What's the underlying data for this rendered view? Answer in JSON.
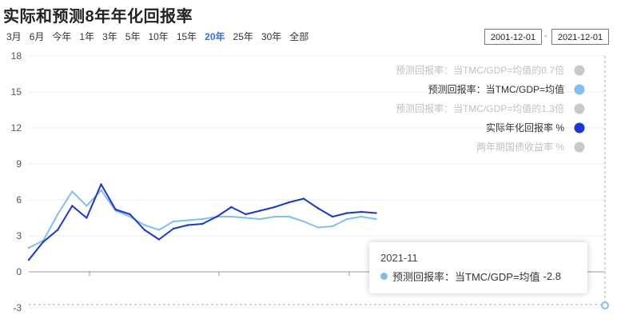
{
  "title": "实际和预测8年年化回报率",
  "ranges": [
    {
      "label": "3月",
      "active": false
    },
    {
      "label": "6月",
      "active": false
    },
    {
      "label": "今年",
      "active": false
    },
    {
      "label": "1年",
      "active": false
    },
    {
      "label": "3年",
      "active": false
    },
    {
      "label": "5年",
      "active": false
    },
    {
      "label": "10年",
      "active": false
    },
    {
      "label": "15年",
      "active": false
    },
    {
      "label": "20年",
      "active": true
    },
    {
      "label": "25年",
      "active": false
    },
    {
      "label": "30年",
      "active": false
    },
    {
      "label": "全部",
      "active": false
    }
  ],
  "date_from": "2001-12-01",
  "date_sep": "-",
  "date_to": "2021-12-01",
  "tooltip": {
    "title": "2021-11",
    "label": "预测回报率：当TMC/GDP=均值",
    "value": "-2.8"
  },
  "colors": {
    "actual": "#1a35d8",
    "forecast": "#80bff0",
    "disabled": "#c8c8c8",
    "active_range": "#3a6fd8"
  },
  "chart_data": {
    "type": "line",
    "ylim": [
      -3,
      18
    ],
    "yticks": [
      "-3",
      "0",
      "3",
      "6",
      "9",
      "12",
      "15",
      "18"
    ],
    "grid": true,
    "legend_position": "top-right",
    "x_start": "2001-12",
    "x_end": "2021-11",
    "legend": [
      {
        "label": "预测回报率：当TMC/GDP=均值的0.7倍",
        "color": "#c8c8c8",
        "enabled": false
      },
      {
        "label": "预测回报率：当TMC/GDP=均值",
        "color": "#80bff0",
        "enabled": true
      },
      {
        "label": "预测回报率：当TMC/GDP=均值的1.3倍",
        "color": "#c8c8c8",
        "enabled": false
      },
      {
        "label": "实际年化回报率 %",
        "color": "#1a35d8",
        "enabled": true
      },
      {
        "label": "两年期国债收益率 %",
        "color": "#c8c8c8",
        "enabled": false
      }
    ],
    "series": [
      {
        "name": "实际年化回报率 %",
        "x": [
          "2001-12",
          "2002-06",
          "2002-12",
          "2003-06",
          "2003-12",
          "2004-06",
          "2004-12",
          "2005-06",
          "2005-12",
          "2006-06",
          "2006-12",
          "2007-06",
          "2007-12",
          "2008-06",
          "2008-12",
          "2009-06",
          "2009-12",
          "2010-06",
          "2010-12",
          "2011-06",
          "2011-12",
          "2012-06",
          "2012-12",
          "2013-06",
          "2013-12"
        ],
        "values": [
          1.0,
          2.5,
          3.5,
          5.5,
          4.5,
          7.3,
          5.2,
          4.8,
          3.5,
          2.7,
          3.6,
          3.9,
          4.0,
          4.6,
          5.4,
          4.8,
          5.1,
          5.4,
          5.8,
          6.1,
          5.3,
          4.6,
          4.9,
          5.0,
          4.9
        ]
      },
      {
        "name": "预测回报率：当TMC/GDP=均值",
        "x": [
          "2001-12",
          "2002-06",
          "2002-12",
          "2003-06",
          "2003-12",
          "2004-06",
          "2004-12",
          "2005-06",
          "2005-12",
          "2006-06",
          "2006-12",
          "2007-06",
          "2007-12",
          "2008-06",
          "2008-12",
          "2009-06",
          "2009-12",
          "2010-06",
          "2010-12",
          "2011-06",
          "2011-12",
          "2012-06",
          "2012-12",
          "2013-06",
          "2013-12"
        ],
        "values": [
          2.0,
          2.6,
          4.8,
          6.7,
          5.5,
          6.8,
          5.1,
          4.6,
          3.9,
          3.5,
          4.2,
          4.3,
          4.4,
          4.6,
          4.6,
          4.5,
          4.4,
          4.6,
          4.6,
          4.2,
          3.7,
          3.8,
          4.4,
          4.6,
          4.4
        ]
      }
    ]
  }
}
